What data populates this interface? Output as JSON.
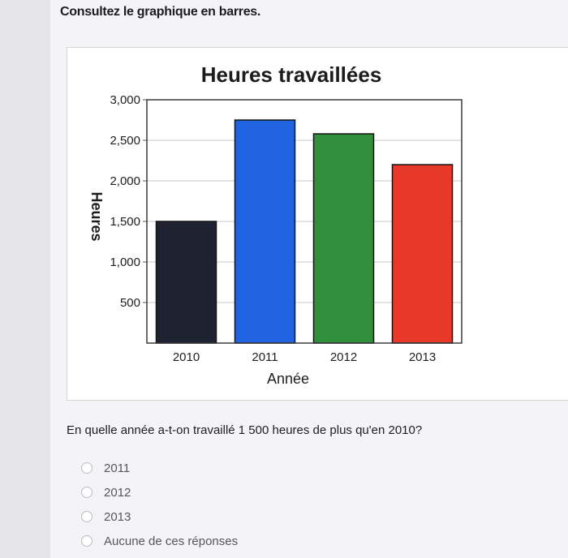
{
  "page": {
    "instruction": "Consultez le graphique en barres."
  },
  "chart_data": {
    "type": "bar",
    "title": "Heures travaillées",
    "xlabel": "Année",
    "ylabel": "Heures",
    "categories": [
      "2010",
      "2011",
      "2012",
      "2013"
    ],
    "values": [
      1500,
      2750,
      2580,
      2200
    ],
    "colors": [
      "#1f2230",
      "#1f63e0",
      "#2f8f3a",
      "#e8382a"
    ],
    "ylim": [
      0,
      3000
    ],
    "yticks": [
      500,
      1000,
      1500,
      2000,
      2500,
      3000
    ],
    "ytick_labels": [
      "500",
      "1,000",
      "1,500",
      "2,000",
      "2,500",
      "3,000"
    ],
    "grid": true
  },
  "question": {
    "text": "En quelle année a-t-on travaillé 1 500 heures de plus qu'en 2010?",
    "options": [
      "2011",
      "2012",
      "2013",
      "Aucune de ces réponses"
    ]
  }
}
